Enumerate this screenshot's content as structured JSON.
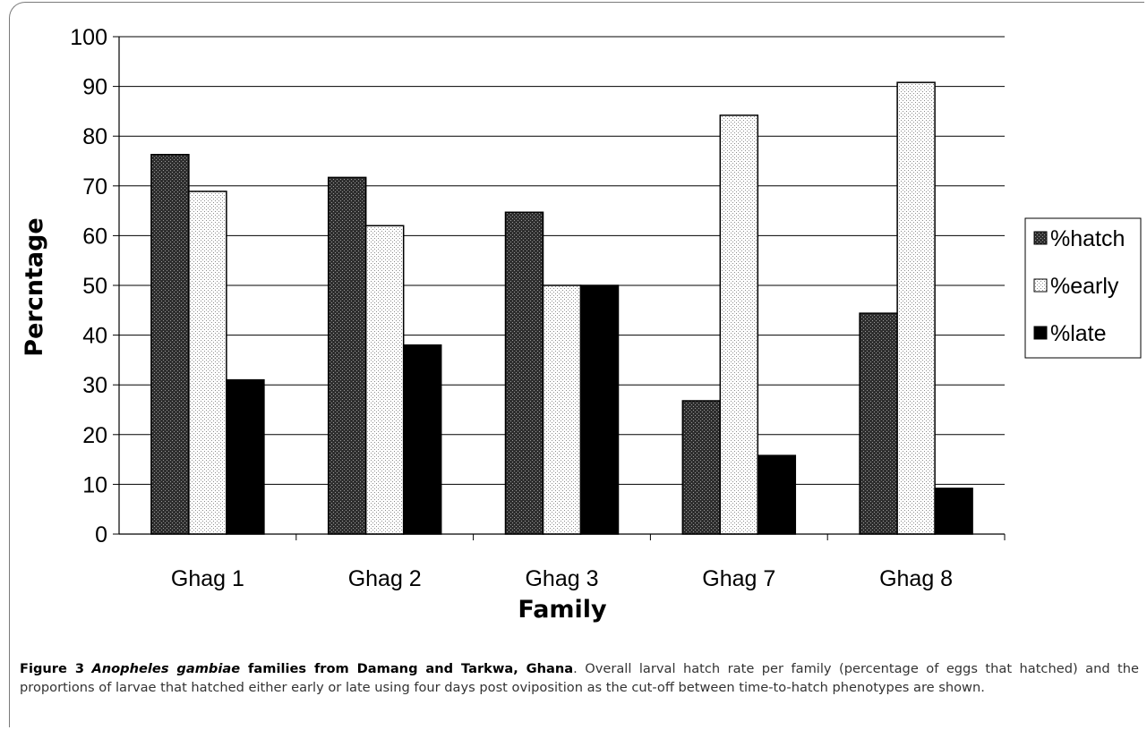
{
  "chart_data": {
    "type": "bar",
    "categories": [
      "Ghag 1",
      "Ghag 2",
      "Ghag 3",
      "Ghag 7",
      "Ghag 8"
    ],
    "series": [
      {
        "name": "%hatch",
        "values": [
          76.3,
          71.7,
          64.7,
          26.8,
          44.4
        ],
        "pattern": "dark-dots"
      },
      {
        "name": "%early",
        "values": [
          68.9,
          62.0,
          50.0,
          84.2,
          90.8
        ],
        "pattern": "light-dots"
      },
      {
        "name": "%late",
        "values": [
          31.0,
          38.0,
          50.0,
          15.8,
          9.2
        ],
        "pattern": "solid-black"
      }
    ],
    "xlabel": "Family",
    "ylabel": "Percntage",
    "ylim": [
      0,
      100
    ],
    "yticks": [
      "0",
      "10",
      "20",
      "30",
      "40",
      "50",
      "60",
      "70",
      "80",
      "90",
      "100"
    ],
    "grid": true,
    "legend": "right"
  },
  "caption": {
    "label": "Figure 3",
    "title_italic": "Anopheles gambiae",
    "title_rest": " families from Damang and Tarkwa, Ghana",
    "body": ". Overall larval hatch rate per family (percentage of eggs that hatched) and the proportions of larvae that hatched either early or late using four days post oviposition as the cut-off between time-to-hatch phenotypes are shown."
  }
}
